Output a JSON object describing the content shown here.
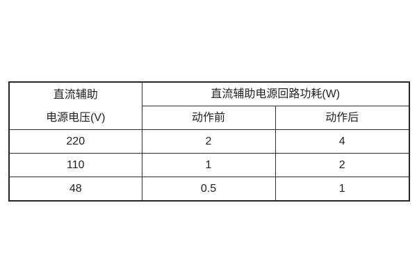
{
  "table": {
    "voltage_header_line1": "直流辅助",
    "voltage_header_line2": "电源电压(V)",
    "group_header": "直流辅助电源回路功耗(W)",
    "sub_headers": [
      "动作前",
      "动作后"
    ],
    "rows": [
      {
        "voltage": "220",
        "before": "2",
        "after": "4"
      },
      {
        "voltage": "110",
        "before": "1",
        "after": "2"
      },
      {
        "voltage": "48",
        "before": "0.5",
        "after": "1"
      }
    ]
  },
  "chart_data": {
    "type": "table",
    "title": "直流辅助电源回路功耗(W)",
    "columns": [
      "直流辅助电源电压(V)",
      "动作前",
      "动作后"
    ],
    "rows": [
      [
        "220",
        "2",
        "4"
      ],
      [
        "110",
        "1",
        "2"
      ],
      [
        "48",
        "0.5",
        "1"
      ]
    ]
  },
  "colors": {
    "border": "#262626",
    "text": "#1f1f1f",
    "background": "#ffffff"
  }
}
